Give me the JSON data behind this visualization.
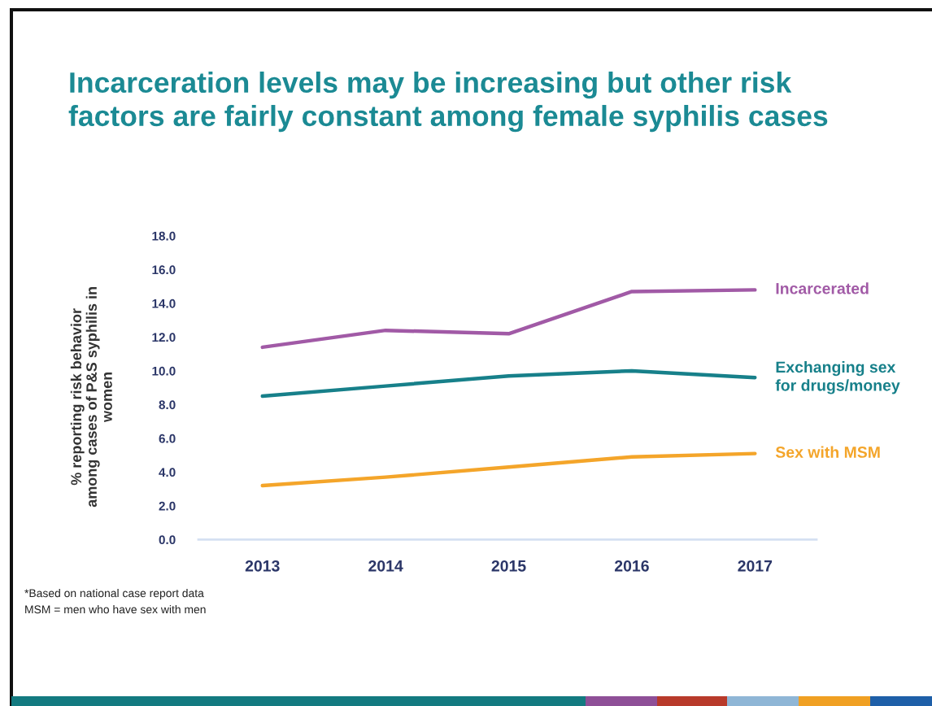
{
  "chart_data": {
    "type": "line",
    "title": "Incarceration levels may be increasing but other risk\nfactors are fairly constant among female syphilis cases",
    "ylabel": "% reporting risk behavior\namong cases of P&S syphilis in\nwomen",
    "categories": [
      "2013",
      "2014",
      "2015",
      "2016",
      "2017"
    ],
    "series": [
      {
        "name": "Incarcerated",
        "color": "#a15aa6",
        "values": [
          11.4,
          12.4,
          12.2,
          14.7,
          14.8
        ]
      },
      {
        "name": "Exchanging sex\nfor drugs/money",
        "color": "#17808a",
        "values": [
          8.5,
          9.1,
          9.7,
          10.0,
          9.6
        ]
      },
      {
        "name": "Sex with MSM",
        "color": "#f4a52a",
        "values": [
          3.2,
          3.7,
          4.3,
          4.9,
          5.1
        ]
      }
    ],
    "ylim": [
      0,
      18
    ],
    "yticks": [
      {
        "value": 0,
        "label": "0.0"
      },
      {
        "value": 2,
        "label": "2.0"
      },
      {
        "value": 4,
        "label": "4.0"
      },
      {
        "value": 6,
        "label": "6.0"
      },
      {
        "value": 8,
        "label": "8.0"
      },
      {
        "value": 10,
        "label": "10.0"
      },
      {
        "value": 12,
        "label": "12.0"
      },
      {
        "value": 14,
        "label": "14.0"
      },
      {
        "value": 16,
        "label": "16.0"
      },
      {
        "value": 18,
        "label": "18.0"
      }
    ],
    "annotations": [
      "*Based on national case report data",
      "MSM = men who have sex with men"
    ]
  }
}
